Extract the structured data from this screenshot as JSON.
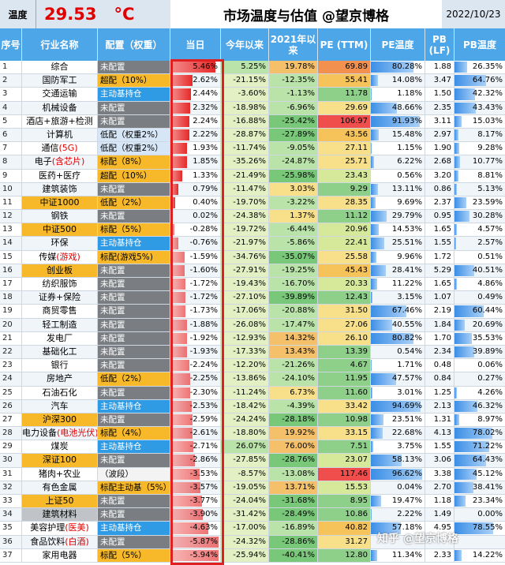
{
  "topbar": {
    "temp_label": "温度",
    "temp_value": "29.53",
    "temp_unit": "°C",
    "title": "市场温度与估值 @望京博格",
    "date": "2022/10/23"
  },
  "headers": [
    "序号",
    "行业名称",
    "配置（权重）",
    "当日",
    "今年以来",
    "2021年以来",
    "PE (TTM)",
    "PE温度",
    "PB (LF)",
    "PB温度"
  ],
  "colors": {
    "header_bg": "#4da6e8",
    "today_bar": "#e62929",
    "temp_bar": "#3b8ee6",
    "temp_value": "#e00000",
    "frame": "#e02020"
  },
  "rows": [
    {
      "idx": "1",
      "name": "综合",
      "name_hl": "",
      "name_style": "",
      "alloc": "未配置",
      "alloc_hl": "",
      "alloc_type": "none",
      "today": "5.46%",
      "ytd": "5.25%",
      "y2021": "19.78%",
      "pe": "69.89",
      "pe_temp": "80.28%",
      "pb": "1.88",
      "pb_temp": "26.35%"
    },
    {
      "idx": "2",
      "name": "国防军工",
      "name_hl": "",
      "name_style": "",
      "alloc": "超配（10%）",
      "alloc_hl": "",
      "alloc_type": "over",
      "today": "2.62%",
      "ytd": "-21.15%",
      "y2021": "-12.35%",
      "pe": "55.41",
      "pe_temp": "14.08%",
      "pb": "3.47",
      "pb_temp": "64.76%"
    },
    {
      "idx": "3",
      "name": "交通运输",
      "name_hl": "",
      "name_style": "",
      "alloc": "主动基持仓",
      "alloc_hl": "",
      "alloc_type": "heavy",
      "today": "2.44%",
      "ytd": "-3.60%",
      "y2021": "-1.13%",
      "pe": "11.78",
      "pe_temp": "1.18%",
      "pb": "1.50",
      "pb_temp": "42.32%"
    },
    {
      "idx": "4",
      "name": "机械设备",
      "name_hl": "",
      "name_style": "",
      "alloc": "未配置",
      "alloc_hl": "",
      "alloc_type": "none",
      "today": "2.32%",
      "ytd": "-18.98%",
      "y2021": "-6.96%",
      "pe": "29.69",
      "pe_temp": "48.66%",
      "pb": "2.35",
      "pb_temp": "43.43%"
    },
    {
      "idx": "5",
      "name": "酒店+旅游+检测",
      "name_hl": "",
      "name_style": "",
      "alloc": "未配置",
      "alloc_hl": "",
      "alloc_type": "none",
      "today": "2.24%",
      "ytd": "-16.88%",
      "y2021": "-25.42%",
      "pe": "106.97",
      "pe_temp": "91.93%",
      "pb": "3.11",
      "pb_temp": "15.03%"
    },
    {
      "idx": "6",
      "name": "计算机",
      "name_hl": "",
      "name_style": "",
      "alloc": "低配（权重2%）",
      "alloc_hl": "",
      "alloc_type": "under",
      "today": "2.22%",
      "ytd": "-28.87%",
      "y2021": "-27.89%",
      "pe": "43.56",
      "pe_temp": "15.48%",
      "pb": "2.97",
      "pb_temp": "8.17%"
    },
    {
      "idx": "7",
      "name": "通信",
      "name_hl": "(5G)",
      "name_style": "",
      "alloc": "低配（权重2%）",
      "alloc_hl": "",
      "alloc_type": "under",
      "today": "1.93%",
      "ytd": "-11.74%",
      "y2021": "-9.05%",
      "pe": "27.11",
      "pe_temp": "1.15%",
      "pb": "1.90",
      "pb_temp": "9.28%"
    },
    {
      "idx": "8",
      "name": "电子",
      "name_hl": "(含芯片)",
      "name_style": "",
      "alloc": "标配（8%）",
      "alloc_hl": "",
      "alloc_type": "std",
      "today": "1.85%",
      "ytd": "-35.26%",
      "y2021": "-24.87%",
      "pe": "25.71",
      "pe_temp": "6.22%",
      "pb": "2.68",
      "pb_temp": "10.77%"
    },
    {
      "idx": "9",
      "name": "医药+医疗",
      "name_hl": "",
      "name_style": "",
      "alloc": "超配（10%）",
      "alloc_hl": "",
      "alloc_type": "over",
      "today": "1.33%",
      "ytd": "-21.49%",
      "y2021": "-25.98%",
      "pe": "23.43",
      "pe_temp": "0.56%",
      "pb": "3.20",
      "pb_temp": "8.81%"
    },
    {
      "idx": "10",
      "name": "建筑装饰",
      "name_hl": "",
      "name_style": "",
      "alloc": "未配置",
      "alloc_hl": "",
      "alloc_type": "none",
      "today": "0.79%",
      "ytd": "-11.47%",
      "y2021": "3.03%",
      "pe": "9.29",
      "pe_temp": "13.11%",
      "pb": "0.86",
      "pb_temp": "5.13%"
    },
    {
      "idx": "11",
      "name": "中证1000",
      "name_hl": "",
      "name_style": "yellow",
      "alloc": "低配（2%）",
      "alloc_hl": "",
      "alloc_type": "std",
      "today": "0.40%",
      "ytd": "-19.70%",
      "y2021": "-3.22%",
      "pe": "28.35",
      "pe_temp": "9.69%",
      "pb": "2.37",
      "pb_temp": "23.59%"
    },
    {
      "idx": "12",
      "name": "钢铁",
      "name_hl": "",
      "name_style": "",
      "alloc": "未配置",
      "alloc_hl": "",
      "alloc_type": "none",
      "today": "0.02%",
      "ytd": "-24.38%",
      "y2021": "1.37%",
      "pe": "11.12",
      "pe_temp": "29.79%",
      "pb": "0.95",
      "pb_temp": "30.28%"
    },
    {
      "idx": "13",
      "name": "中证500",
      "name_hl": "",
      "name_style": "yellow",
      "alloc": "标配（5%）",
      "alloc_hl": "",
      "alloc_type": "std",
      "today": "-0.28%",
      "ytd": "-19.72%",
      "y2021": "-6.44%",
      "pe": "20.96",
      "pe_temp": "14.53%",
      "pb": "1.65",
      "pb_temp": "4.57%"
    },
    {
      "idx": "14",
      "name": "环保",
      "name_hl": "",
      "name_style": "",
      "alloc": "主动基持仓",
      "alloc_hl": "",
      "alloc_type": "heavy",
      "today": "-0.76%",
      "ytd": "-21.97%",
      "y2021": "-5.86%",
      "pe": "22.41",
      "pe_temp": "25.51%",
      "pb": "1.55",
      "pb_temp": "2.57%"
    },
    {
      "idx": "15",
      "name": "传媒",
      "name_hl": "(游戏)",
      "name_style": "",
      "alloc": "标配(游戏5%)",
      "alloc_hl": "",
      "alloc_type": "std",
      "today": "-1.59%",
      "ytd": "-34.76%",
      "y2021": "-35.07%",
      "pe": "25.58",
      "pe_temp": "9.96%",
      "pb": "1.72",
      "pb_temp": "0.51%"
    },
    {
      "idx": "16",
      "name": "创业板",
      "name_hl": "",
      "name_style": "yellow",
      "alloc": "未配置",
      "alloc_hl": "",
      "alloc_type": "none",
      "today": "-1.60%",
      "ytd": "-27.91%",
      "y2021": "-19.25%",
      "pe": "45.43",
      "pe_temp": "28.41%",
      "pb": "5.29",
      "pb_temp": "40.51%"
    },
    {
      "idx": "17",
      "name": "纺织服饰",
      "name_hl": "",
      "name_style": "",
      "alloc": "未配置",
      "alloc_hl": "",
      "alloc_type": "none",
      "today": "-1.72%",
      "ytd": "-19.43%",
      "y2021": "-16.70%",
      "pe": "20.33",
      "pe_temp": "11.22%",
      "pb": "1.65",
      "pb_temp": "4.86%"
    },
    {
      "idx": "18",
      "name": "证券+保险",
      "name_hl": "",
      "name_style": "",
      "alloc": "未配置",
      "alloc_hl": "",
      "alloc_type": "none",
      "today": "-1.72%",
      "ytd": "-27.10%",
      "y2021": "-39.89%",
      "pe": "12.43",
      "pe_temp": "3.15%",
      "pb": "1.07",
      "pb_temp": "0.49%"
    },
    {
      "idx": "19",
      "name": "商贸零售",
      "name_hl": "",
      "name_style": "",
      "alloc": "未配置",
      "alloc_hl": "",
      "alloc_type": "none",
      "today": "-1.73%",
      "ytd": "-17.06%",
      "y2021": "-20.88%",
      "pe": "31.50",
      "pe_temp": "67.46%",
      "pb": "2.19",
      "pb_temp": "60.44%"
    },
    {
      "idx": "20",
      "name": "轻工制造",
      "name_hl": "",
      "name_style": "",
      "alloc": "未配置",
      "alloc_hl": "",
      "alloc_type": "none",
      "today": "-1.88%",
      "ytd": "-26.08%",
      "y2021": "-17.47%",
      "pe": "27.06",
      "pe_temp": "40.55%",
      "pb": "1.84",
      "pb_temp": "20.69%"
    },
    {
      "idx": "21",
      "name": "发电厂",
      "name_hl": "",
      "name_style": "",
      "alloc": "未配置",
      "alloc_hl": "",
      "alloc_type": "none",
      "today": "-1.92%",
      "ytd": "-12.93%",
      "y2021": "14.32%",
      "pe": "26.10",
      "pe_temp": "80.82%",
      "pb": "1.70",
      "pb_temp": "35.53%"
    },
    {
      "idx": "22",
      "name": "基础化工",
      "name_hl": "",
      "name_style": "",
      "alloc": "未配置",
      "alloc_hl": "",
      "alloc_type": "none",
      "today": "-1.93%",
      "ytd": "-17.33%",
      "y2021": "13.43%",
      "pe": "13.39",
      "pe_temp": "0.54%",
      "pb": "2.34",
      "pb_temp": "39.89%"
    },
    {
      "idx": "23",
      "name": "银行",
      "name_hl": "",
      "name_style": "",
      "alloc": "未配置",
      "alloc_hl": "",
      "alloc_type": "none",
      "today": "-2.24%",
      "ytd": "-12.20%",
      "y2021": "-21.26%",
      "pe": "4.67",
      "pe_temp": "1.71%",
      "pb": "0.48",
      "pb_temp": "0.06%"
    },
    {
      "idx": "24",
      "name": "房地产",
      "name_hl": "",
      "name_style": "",
      "alloc": "低配（2%）",
      "alloc_hl": "",
      "alloc_type": "std",
      "today": "-2.25%",
      "ytd": "-13.86%",
      "y2021": "-24.10%",
      "pe": "11.95",
      "pe_temp": "47.57%",
      "pb": "0.84",
      "pb_temp": "0.27%"
    },
    {
      "idx": "25",
      "name": "石油石化",
      "name_hl": "",
      "name_style": "",
      "alloc": "未配置",
      "alloc_hl": "",
      "alloc_type": "none",
      "today": "-2.30%",
      "ytd": "-11.24%",
      "y2021": "6.73%",
      "pe": "11.60",
      "pe_temp": "3.01%",
      "pb": "1.25",
      "pb_temp": "4.26%"
    },
    {
      "idx": "26",
      "name": "汽车",
      "name_hl": "",
      "name_style": "",
      "alloc": "主动基持仓",
      "alloc_hl": "",
      "alloc_type": "heavy",
      "today": "-2.53%",
      "ytd": "-18.42%",
      "y2021": "-4.39%",
      "pe": "33.42",
      "pe_temp": "94.69%",
      "pb": "2.13",
      "pb_temp": "46.32%"
    },
    {
      "idx": "27",
      "name": "沪深300",
      "name_hl": "",
      "name_style": "yellow",
      "alloc": "未配置",
      "alloc_hl": "",
      "alloc_type": "none",
      "today": "-2.59%",
      "ytd": "-24.24%",
      "y2021": "-28.18%",
      "pe": "10.98",
      "pe_temp": "23.51%",
      "pb": "1.31",
      "pb_temp": "8.97%"
    },
    {
      "idx": "28",
      "name": "电力设备",
      "name_hl": "(电池光伏)",
      "name_style": "",
      "alloc": "标配（4%）",
      "alloc_hl": "",
      "alloc_type": "std",
      "today": "-2.61%",
      "ytd": "-18.80%",
      "y2021": "19.92%",
      "pe": "33.15",
      "pe_temp": "22.68%",
      "pb": "4.13",
      "pb_temp": "78.02%"
    },
    {
      "idx": "29",
      "name": "煤炭",
      "name_hl": "",
      "name_style": "",
      "alloc": "主动基持仓",
      "alloc_hl": "",
      "alloc_type": "heavy",
      "today": "-2.71%",
      "ytd": "26.07%",
      "y2021": "76.00%",
      "pe": "7.51",
      "pe_temp": "3.75%",
      "pb": "1.55",
      "pb_temp": "71.22%"
    },
    {
      "idx": "30",
      "name": "深证100",
      "name_hl": "",
      "name_style": "yellow",
      "alloc": "未配置",
      "alloc_hl": "",
      "alloc_type": "none",
      "today": "-2.86%",
      "ytd": "-27.85%",
      "y2021": "-28.76%",
      "pe": "23.07",
      "pe_temp": "58.13%",
      "pb": "3.06",
      "pb_temp": "64.43%"
    },
    {
      "idx": "31",
      "name": "猪肉+农业",
      "name_hl": "",
      "name_style": "",
      "alloc": "（波段）",
      "alloc_hl": "",
      "alloc_type": "neutral",
      "today": "-3.53%",
      "ytd": "-8.57%",
      "y2021": "-13.08%",
      "pe": "117.46",
      "pe_temp": "96.62%",
      "pb": "3.38",
      "pb_temp": "45.12%"
    },
    {
      "idx": "32",
      "name": "有色金属",
      "name_hl": "",
      "name_style": "",
      "alloc": "标配主动基（5%）",
      "alloc_hl": "",
      "alloc_type": "std",
      "today": "-3.57%",
      "ytd": "-19.05%",
      "y2021": "13.71%",
      "pe": "15.53",
      "pe_temp": "0.04%",
      "pb": "2.70",
      "pb_temp": "38.41%"
    },
    {
      "idx": "33",
      "name": "上证50",
      "name_hl": "",
      "name_style": "yellow",
      "alloc": "未配置",
      "alloc_hl": "",
      "alloc_type": "none",
      "today": "-3.77%",
      "ytd": "-24.04%",
      "y2021": "-31.68%",
      "pe": "8.95",
      "pe_temp": "19.47%",
      "pb": "1.18",
      "pb_temp": "23.34%"
    },
    {
      "idx": "34",
      "name": "建筑材料",
      "name_hl": "",
      "name_style": "gray",
      "alloc": "未配置",
      "alloc_hl": "",
      "alloc_type": "none",
      "today": "-3.90%",
      "ytd": "-31.42%",
      "y2021": "-28.49%",
      "pe": "10.86",
      "pe_temp": "2.22%",
      "pb": "1.49",
      "pb_temp": "0.00%"
    },
    {
      "idx": "35",
      "name": "美容护理",
      "name_hl": "(医美)",
      "name_style": "",
      "alloc": "主动基持仓",
      "alloc_hl": "",
      "alloc_type": "heavy",
      "today": "-4.63%",
      "ytd": "-17.00%",
      "y2021": "-16.89%",
      "pe": "40.82",
      "pe_temp": "57.18%",
      "pb": "4.95",
      "pb_temp": "78.55%"
    },
    {
      "idx": "36",
      "name": "食品饮料",
      "name_hl": "(白酒)",
      "name_style": "",
      "alloc": "未配置",
      "alloc_hl": "",
      "alloc_type": "none",
      "today": "-5.87%",
      "ytd": "-24.32%",
      "y2021": "-28.86%",
      "pe": "31.27",
      "pe_temp": "",
      "pb": "",
      "pb_temp": ""
    },
    {
      "idx": "37",
      "name": "家用电器",
      "name_hl": "",
      "name_style": "",
      "alloc": "标配（5%）",
      "alloc_hl": "",
      "alloc_type": "std",
      "today": "-5.94%",
      "ytd": "-25.94%",
      "y2021": "-40.41%",
      "pe": "12.80",
      "pe_temp": "11.34%",
      "pb": "2.33",
      "pb_temp": "14.22%"
    }
  ],
  "watermark": "知乎 @望京博格"
}
